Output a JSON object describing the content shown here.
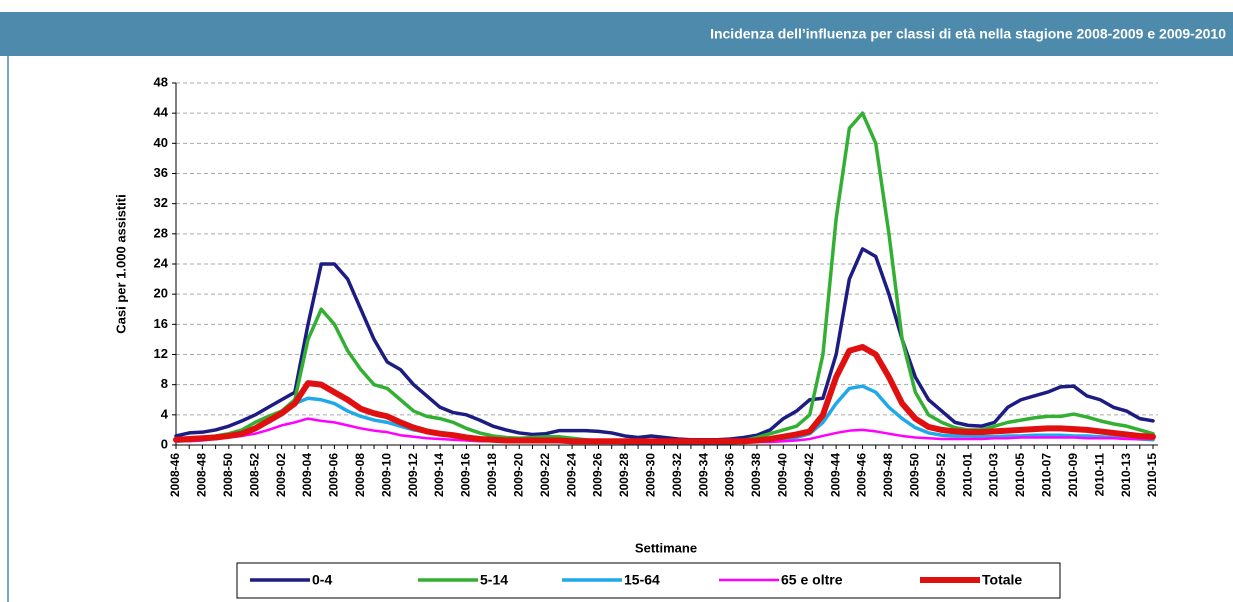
{
  "chart_data": {
    "type": "line",
    "title": "Incidenza dell’influenza per classi di età nella stagione 2008-2009 e 2009-2010",
    "y_label": "Casi per 1.000 assistiti",
    "x_label": "Settimane",
    "categories": [
      "2008-46",
      null,
      "2008-48",
      null,
      "2008-50",
      null,
      "2008-52",
      null,
      "2009-02",
      null,
      "2009-04",
      null,
      "2009-06",
      null,
      "2009-08",
      null,
      "2009-10",
      null,
      "2009-12",
      null,
      "2009-14",
      null,
      "2009-16",
      null,
      "2009-18",
      null,
      "2009-20",
      null,
      "2009-22",
      null,
      "2009-24",
      null,
      "2009-26",
      null,
      "2009-28",
      null,
      "2009-30",
      null,
      "2009-32",
      null,
      "2009-34",
      null,
      "2009-36",
      null,
      "2009-38",
      null,
      "2009-40",
      null,
      "2009-42",
      null,
      "2009-44",
      null,
      "2009-46",
      null,
      "2009-48",
      null,
      "2009-50",
      null,
      "2009-52",
      null,
      "2010-01",
      null,
      "2010-03",
      null,
      "2010-05",
      null,
      "2010-07",
      null,
      "2010-09",
      null,
      "2010-11",
      null,
      "2010-13",
      null,
      "2010-15"
    ],
    "ylim": [
      0,
      48
    ],
    "yticks": [
      0,
      4,
      8,
      12,
      16,
      20,
      24,
      28,
      32,
      36,
      40,
      44,
      48
    ],
    "grid": true,
    "series": [
      {
        "name": "0-4",
        "color": "#1c1c82",
        "width": 3.5,
        "values": [
          1.2,
          1.6,
          1.7,
          2.0,
          2.5,
          3.2,
          4.0,
          5.0,
          6.0,
          7.0,
          16,
          24,
          24,
          22,
          18,
          14,
          11,
          10,
          8,
          6.5,
          5,
          4.3,
          4,
          3.3,
          2.5,
          2,
          1.6,
          1.4,
          1.5,
          1.9,
          1.9,
          1.9,
          1.8,
          1.6,
          1.2,
          1.0,
          1.2,
          1.0,
          0.8,
          0.7,
          0.7,
          0.7,
          0.8,
          1.0,
          1.3,
          2.0,
          3.5,
          4.5,
          6,
          6.2,
          12,
          22,
          26,
          25,
          20,
          14,
          9,
          6,
          4.5,
          3,
          2.6,
          2.5,
          3,
          5,
          6,
          6.5,
          7,
          7.7,
          7.8,
          6.5,
          6,
          5,
          4.5,
          3.5,
          3.2
        ]
      },
      {
        "name": "5-14",
        "color": "#33b033",
        "width": 3.5,
        "values": [
          0.8,
          0.9,
          1.0,
          1.2,
          1.5,
          2.0,
          3.0,
          3.8,
          4.5,
          6,
          14,
          18,
          16,
          12.5,
          10,
          8,
          7.5,
          6,
          4.5,
          3.8,
          3.5,
          3.0,
          2.2,
          1.6,
          1.2,
          1.0,
          0.9,
          1.0,
          1.1,
          1.1,
          0.9,
          0.7,
          0.5,
          0.4,
          0.4,
          0.4,
          0.3,
          0.3,
          0.3,
          0.3,
          0.3,
          0.4,
          0.5,
          0.6,
          1.0,
          1.5,
          2,
          2.5,
          4,
          12,
          30,
          42,
          44,
          40,
          28,
          14,
          7,
          4,
          3,
          2.3,
          2.0,
          2.0,
          2.5,
          3.0,
          3.3,
          3.6,
          3.8,
          3.8,
          4.1,
          3.7,
          3.2,
          2.8,
          2.5,
          2.0,
          1.5
        ]
      },
      {
        "name": "15-64",
        "color": "#1fa9e8",
        "width": 3.5,
        "values": [
          0.5,
          0.6,
          0.8,
          1.0,
          1.2,
          1.6,
          2.2,
          3,
          4,
          5.5,
          6.2,
          6,
          5.5,
          4.5,
          3.8,
          3.3,
          3,
          2.5,
          2,
          1.7,
          1.4,
          1.2,
          1.0,
          0.8,
          0.7,
          0.6,
          0.6,
          0.6,
          0.6,
          0.6,
          0.5,
          0.5,
          0.4,
          0.4,
          0.3,
          0.3,
          0.3,
          0.3,
          0.3,
          0.3,
          0.3,
          0.3,
          0.3,
          0.4,
          0.5,
          0.6,
          0.8,
          1.0,
          1.5,
          3,
          5.5,
          7.5,
          7.8,
          7,
          5,
          3.5,
          2.3,
          1.6,
          1.3,
          1.2,
          1.2,
          1.1,
          1.1,
          1.2,
          1.2,
          1.3,
          1.3,
          1.3,
          1.2,
          1.2,
          1.1,
          1.0,
          0.9,
          0.8,
          0.7
        ]
      },
      {
        "name": "65 e oltre",
        "color": "#ff00ff",
        "width": 2.5,
        "values": [
          0.5,
          0.5,
          0.6,
          0.8,
          1.0,
          1.2,
          1.5,
          2.0,
          2.6,
          3.0,
          3.5,
          3.2,
          3,
          2.6,
          2.2,
          1.9,
          1.7,
          1.3,
          1.1,
          0.9,
          0.8,
          0.7,
          0.6,
          0.5,
          0.5,
          0.4,
          0.4,
          0.4,
          0.4,
          0.4,
          0.4,
          0.3,
          0.3,
          0.3,
          0.3,
          0.3,
          0.3,
          0.3,
          0.3,
          0.3,
          0.3,
          0.3,
          0.3,
          0.3,
          0.4,
          0.4,
          0.5,
          0.6,
          0.8,
          1.2,
          1.6,
          1.9,
          2.0,
          1.8,
          1.5,
          1.2,
          1.0,
          0.9,
          0.8,
          0.8,
          0.8,
          0.8,
          0.9,
          0.9,
          1.0,
          1.0,
          1.0,
          1.0,
          1.0,
          0.9,
          0.9,
          0.9,
          0.8,
          0.8,
          0.8
        ]
      },
      {
        "name": "Totale",
        "color": "#e01010",
        "width": 6,
        "values": [
          0.7,
          0.8,
          0.9,
          1.0,
          1.2,
          1.5,
          2.2,
          3.2,
          4.2,
          5.5,
          8.2,
          8,
          7,
          6,
          4.8,
          4.2,
          3.8,
          3,
          2.3,
          1.8,
          1.5,
          1.3,
          1.0,
          0.8,
          0.7,
          0.6,
          0.6,
          0.6,
          0.6,
          0.6,
          0.5,
          0.5,
          0.5,
          0.5,
          0.5,
          0.5,
          0.5,
          0.5,
          0.5,
          0.5,
          0.5,
          0.5,
          0.5,
          0.5,
          0.6,
          0.8,
          1.1,
          1.4,
          1.8,
          4,
          9,
          12.5,
          13,
          12,
          9,
          5.5,
          3.5,
          2.4,
          2.0,
          1.8,
          1.7,
          1.7,
          1.8,
          1.9,
          2.0,
          2.1,
          2.2,
          2.2,
          2.1,
          2.0,
          1.8,
          1.6,
          1.4,
          1.2,
          1.1
        ]
      }
    ]
  }
}
